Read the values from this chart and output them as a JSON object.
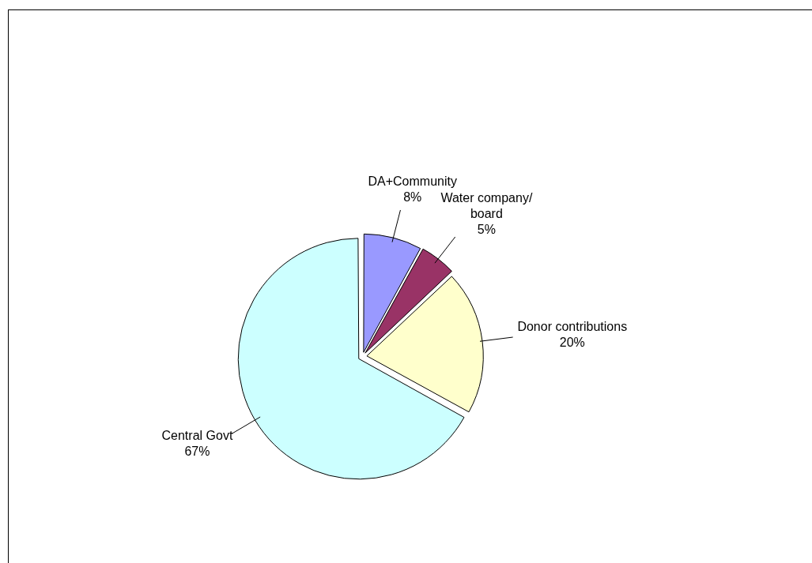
{
  "chart_data": {
    "type": "pie",
    "categories": [
      "DA+Community",
      "Water company/ board",
      "Donor contributions",
      "Central Govt"
    ],
    "values": [
      8,
      5,
      20,
      67
    ],
    "colors": [
      "#9999ff",
      "#993366",
      "#ffffcc",
      "#ccffff"
    ],
    "value_labels": [
      "8%",
      "5%",
      "20%",
      "67%"
    ]
  }
}
